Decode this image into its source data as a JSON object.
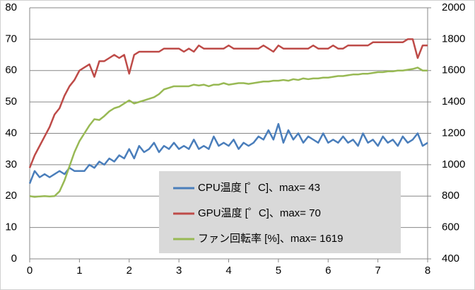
{
  "chart_data": {
    "type": "line",
    "x": [
      0,
      0.1,
      0.2,
      0.3,
      0.4,
      0.5,
      0.6,
      0.7,
      0.8,
      0.9,
      1,
      1.1,
      1.2,
      1.3,
      1.4,
      1.5,
      1.6,
      1.7,
      1.8,
      1.9,
      2,
      2.1,
      2.2,
      2.3,
      2.4,
      2.5,
      2.6,
      2.7,
      2.8,
      2.9,
      3,
      3.1,
      3.2,
      3.3,
      3.4,
      3.5,
      3.6,
      3.7,
      3.8,
      3.9,
      4,
      4.1,
      4.2,
      4.3,
      4.4,
      4.5,
      4.6,
      4.7,
      4.8,
      4.9,
      5,
      5.1,
      5.2,
      5.3,
      5.4,
      5.5,
      5.6,
      5.7,
      5.8,
      5.9,
      6,
      6.1,
      6.2,
      6.3,
      6.4,
      6.5,
      6.6,
      6.7,
      6.8,
      6.9,
      7,
      7.1,
      7.2,
      7.3,
      7.4,
      7.5,
      7.6,
      7.7,
      7.8,
      7.9,
      8
    ],
    "series": [
      {
        "name": "CPU温度 [゜C]、max= 43",
        "color": "#4a7ebb",
        "values": [
          24,
          28,
          26,
          27,
          26,
          27,
          28,
          27,
          29,
          28,
          28,
          28,
          30,
          29,
          31,
          30,
          32,
          31,
          33,
          32,
          35,
          32,
          36,
          34,
          35,
          37,
          34,
          36,
          35,
          37,
          35,
          36,
          35,
          38,
          35,
          36,
          35,
          39,
          36,
          37,
          36,
          38,
          35,
          37,
          36,
          37,
          39,
          38,
          41,
          38,
          43,
          37,
          41,
          38,
          40,
          37,
          39,
          38,
          37,
          40,
          37,
          38,
          37,
          39,
          37,
          38,
          36,
          40,
          37,
          38,
          36,
          39,
          37,
          38,
          36,
          39,
          37,
          38,
          40,
          36,
          37
        ]
      },
      {
        "name": "GPU温度 [゜C]、max= 70",
        "color": "#be4b48",
        "values": [
          29,
          33,
          36,
          39,
          42,
          46,
          48,
          52,
          55,
          57,
          60,
          61,
          62,
          58,
          63,
          63,
          64,
          65,
          64,
          65,
          59,
          65,
          66,
          66,
          66,
          66,
          66,
          67,
          67,
          67,
          67,
          66,
          67,
          66,
          68,
          67,
          67,
          67,
          67,
          67,
          68,
          67,
          67,
          67,
          67,
          67,
          67,
          68,
          67,
          66,
          68,
          67,
          67,
          67,
          67,
          67,
          67,
          68,
          67,
          67,
          67,
          68,
          67,
          67,
          68,
          68,
          68,
          68,
          68,
          69,
          69,
          69,
          69,
          69,
          69,
          69,
          70,
          70,
          64,
          68,
          68
        ]
      },
      {
        "name": "ファン回転率 [%]、max= 1619",
        "color": "#98b954",
        "axis": "y2",
        "values": [
          800,
          795,
          798,
          800,
          798,
          800,
          830,
          900,
          990,
          1080,
          1150,
          1200,
          1250,
          1290,
          1285,
          1310,
          1340,
          1360,
          1370,
          1390,
          1410,
          1390,
          1400,
          1410,
          1420,
          1430,
          1450,
          1480,
          1490,
          1500,
          1500,
          1500,
          1500,
          1510,
          1505,
          1510,
          1500,
          1510,
          1510,
          1520,
          1510,
          1515,
          1520,
          1520,
          1515,
          1520,
          1525,
          1530,
          1530,
          1535,
          1535,
          1540,
          1535,
          1545,
          1540,
          1550,
          1545,
          1550,
          1550,
          1555,
          1555,
          1560,
          1565,
          1565,
          1570,
          1575,
          1575,
          1580,
          1580,
          1585,
          1590,
          1590,
          1595,
          1595,
          1600,
          1600,
          1605,
          1610,
          1619,
          1600,
          1600
        ]
      }
    ],
    "xlim": [
      0,
      8
    ],
    "xticks": [
      0,
      1,
      2,
      3,
      4,
      5,
      6,
      7,
      8
    ],
    "ylim": [
      0,
      80
    ],
    "yticks": [
      0,
      10,
      20,
      30,
      40,
      50,
      60,
      70,
      80
    ],
    "y2lim": [
      400,
      2000
    ],
    "y2ticks": [
      400,
      600,
      800,
      1000,
      1200,
      1400,
      1600,
      1800,
      2000
    ],
    "grid": true
  }
}
